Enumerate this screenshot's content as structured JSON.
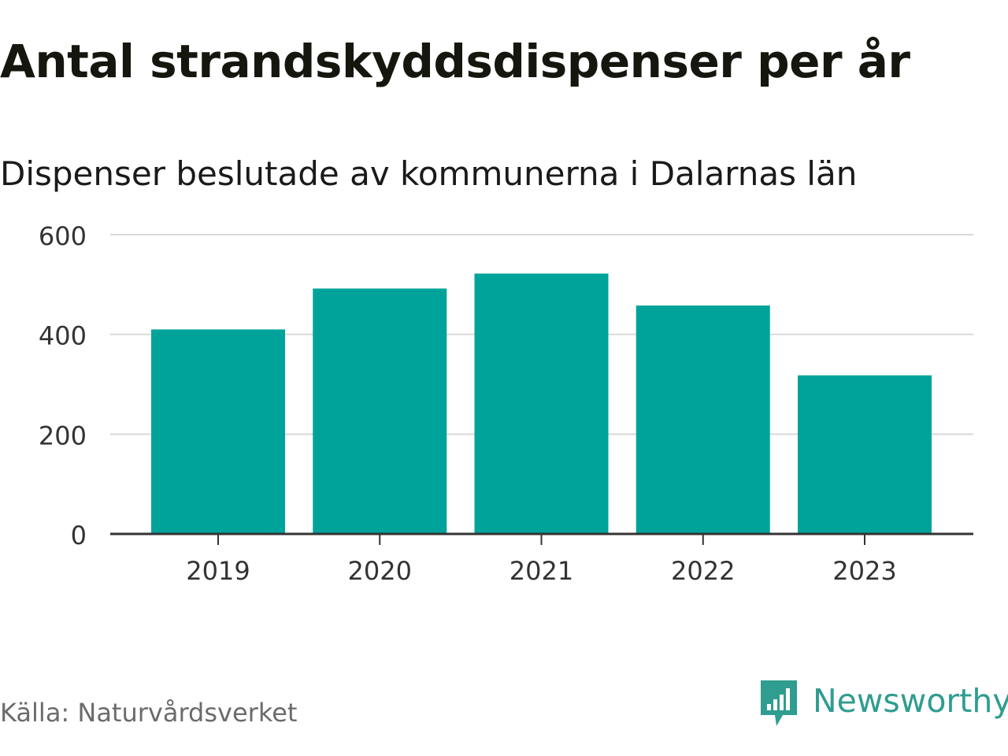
{
  "header": {
    "title": "Antal strandskyddsdispenser per år",
    "subtitle": "Dispenser beslutade av kommunerna i Dalarnas län"
  },
  "footer": {
    "source": "Källa: Naturvårdsverket",
    "brand": "Newsworthy"
  },
  "colors": {
    "bar": "#00a39a",
    "grid": "#d9d9d9",
    "axis": "#333333",
    "brand": "#2f9d8f"
  },
  "chart_data": {
    "type": "bar",
    "title": "Antal strandskyddsdispenser per år",
    "subtitle": "Dispenser beslutade av kommunerna i Dalarnas län",
    "categories": [
      "2019",
      "2020",
      "2021",
      "2022",
      "2023"
    ],
    "values": [
      410,
      492,
      522,
      458,
      318
    ],
    "xlabel": "",
    "ylabel": "",
    "ylim": [
      0,
      600
    ],
    "yticks": [
      0,
      200,
      400,
      600
    ],
    "grid": true,
    "legend": "none"
  }
}
